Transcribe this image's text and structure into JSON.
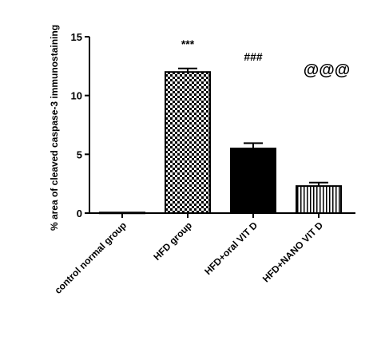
{
  "chart_data": {
    "type": "bar",
    "y_label": "% area of cleaved caspase-3 immunostaining",
    "categories": [
      "control normal group",
      "HFD group",
      "HFD+oral VIT D",
      "HFD+NANO VIT D"
    ],
    "values": [
      0.05,
      12.0,
      5.5,
      2.3
    ],
    "errors": [
      null,
      0.3,
      0.45,
      0.3
    ],
    "patterns": [
      "none",
      "checker",
      "solid",
      "stripes"
    ],
    "annotations": [
      null,
      "***",
      "###",
      "@@@"
    ],
    "color": "#000000",
    "ylim": [
      0,
      15
    ],
    "yticks": [
      0,
      5,
      10,
      15
    ],
    "grid": false
  }
}
